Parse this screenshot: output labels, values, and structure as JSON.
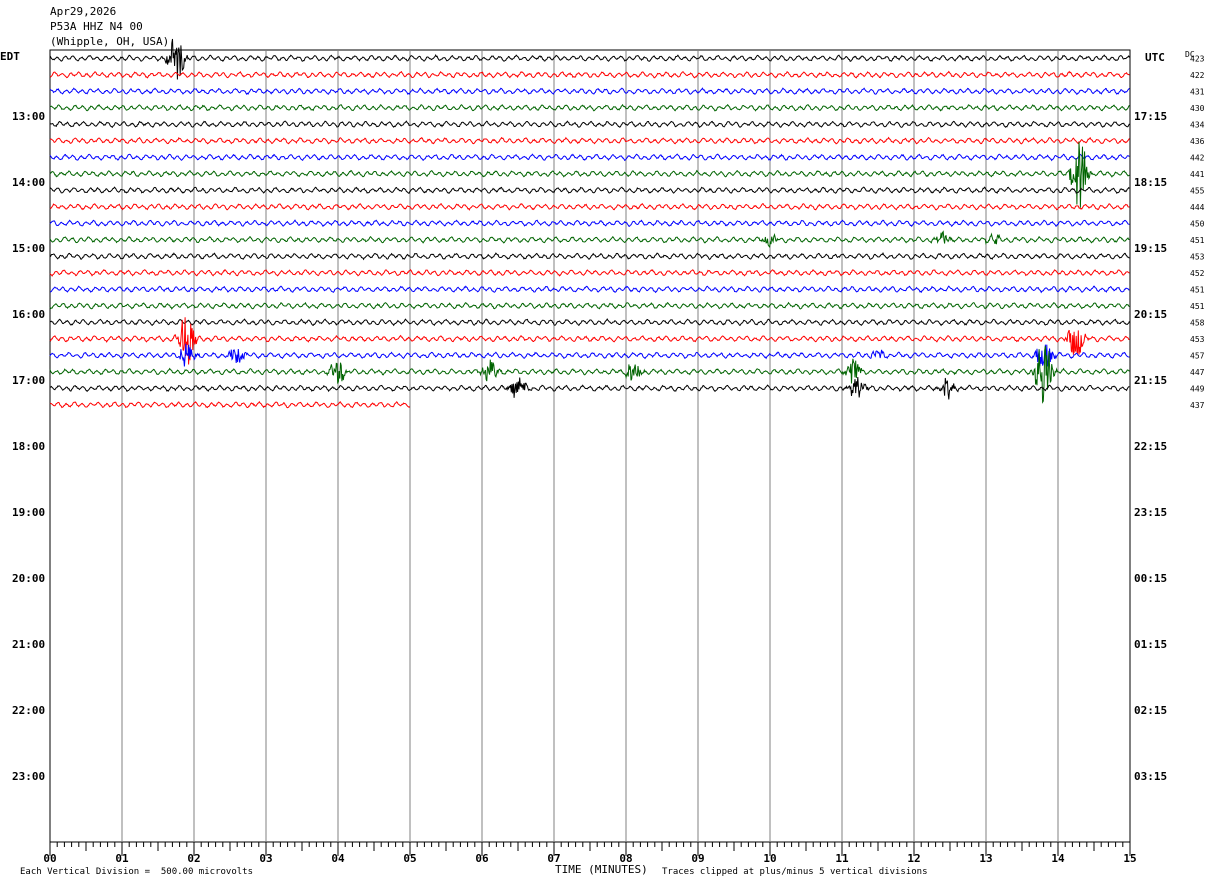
{
  "header": {
    "date": "Apr29,2026",
    "station": "P53A HHZ N4 00",
    "location": "(Whipple, OH, USA)"
  },
  "left_tz": "EDT",
  "right_tz": "UTC",
  "dc_label": "DC",
  "footer": {
    "scale_note": "Each Vertical Division =  500.00 microvolts",
    "xlabel": "TIME (MINUTES)",
    "clip_note": "Traces clipped at plus/minus 5 vertical divisions"
  },
  "colors": {
    "trace": [
      "#000000",
      "#ff0000",
      "#0000ff",
      "#006400"
    ],
    "grid": "#808080"
  },
  "chart_data": {
    "type": "line",
    "xlabel": "TIME (MINUTES)",
    "xlim": [
      0,
      15
    ],
    "x_ticks": [
      "00",
      "01",
      "02",
      "03",
      "04",
      "05",
      "06",
      "07",
      "08",
      "09",
      "10",
      "11",
      "12",
      "13",
      "14",
      "15"
    ],
    "rows_per_hour": 4,
    "start_hour_edt": 12,
    "hours_shown": 12,
    "left_hour_labels": [
      "13:00",
      "14:00",
      "15:00",
      "16:00",
      "17:00",
      "18:00",
      "19:00",
      "20:00",
      "21:00",
      "22:00",
      "23:00"
    ],
    "right_hour_labels": [
      "17:15",
      "18:15",
      "19:15",
      "20:15",
      "21:15",
      "22:15",
      "23:15",
      "00:15",
      "01:15",
      "02:15",
      "03:15"
    ],
    "dc_offsets": [
      "423",
      "422",
      "431",
      "430",
      "434",
      "436",
      "442",
      "441",
      "455",
      "444",
      "450",
      "451",
      "453",
      "452",
      "451",
      "451",
      "458",
      "453",
      "457",
      "447",
      "449",
      "437"
    ],
    "last_trace_end_minute": 5,
    "events": [
      {
        "row": 0,
        "minute": 1.75,
        "amp": 1.6
      },
      {
        "row": 7,
        "minute": 14.3,
        "amp": 2.3
      },
      {
        "row": 11,
        "minute": 12.4,
        "amp": 0.45
      },
      {
        "row": 11,
        "minute": 13.1,
        "amp": 0.35
      },
      {
        "row": 11,
        "minute": 10.0,
        "amp": 0.3
      },
      {
        "row": 17,
        "minute": 1.9,
        "amp": 1.8
      },
      {
        "row": 17,
        "minute": 14.25,
        "amp": 1.2
      },
      {
        "row": 18,
        "minute": 1.9,
        "amp": 0.8
      },
      {
        "row": 18,
        "minute": 2.6,
        "amp": 0.5
      },
      {
        "row": 18,
        "minute": 13.8,
        "amp": 1.0
      },
      {
        "row": 18,
        "minute": 11.5,
        "amp": 0.3
      },
      {
        "row": 19,
        "minute": 4.0,
        "amp": 0.8
      },
      {
        "row": 19,
        "minute": 6.1,
        "amp": 0.7
      },
      {
        "row": 19,
        "minute": 8.1,
        "amp": 0.7
      },
      {
        "row": 19,
        "minute": 11.15,
        "amp": 0.8
      },
      {
        "row": 19,
        "minute": 13.8,
        "amp": 2.4
      },
      {
        "row": 20,
        "minute": 6.5,
        "amp": 0.7
      },
      {
        "row": 20,
        "minute": 11.2,
        "amp": 0.9
      },
      {
        "row": 20,
        "minute": 12.45,
        "amp": 0.7
      }
    ]
  }
}
